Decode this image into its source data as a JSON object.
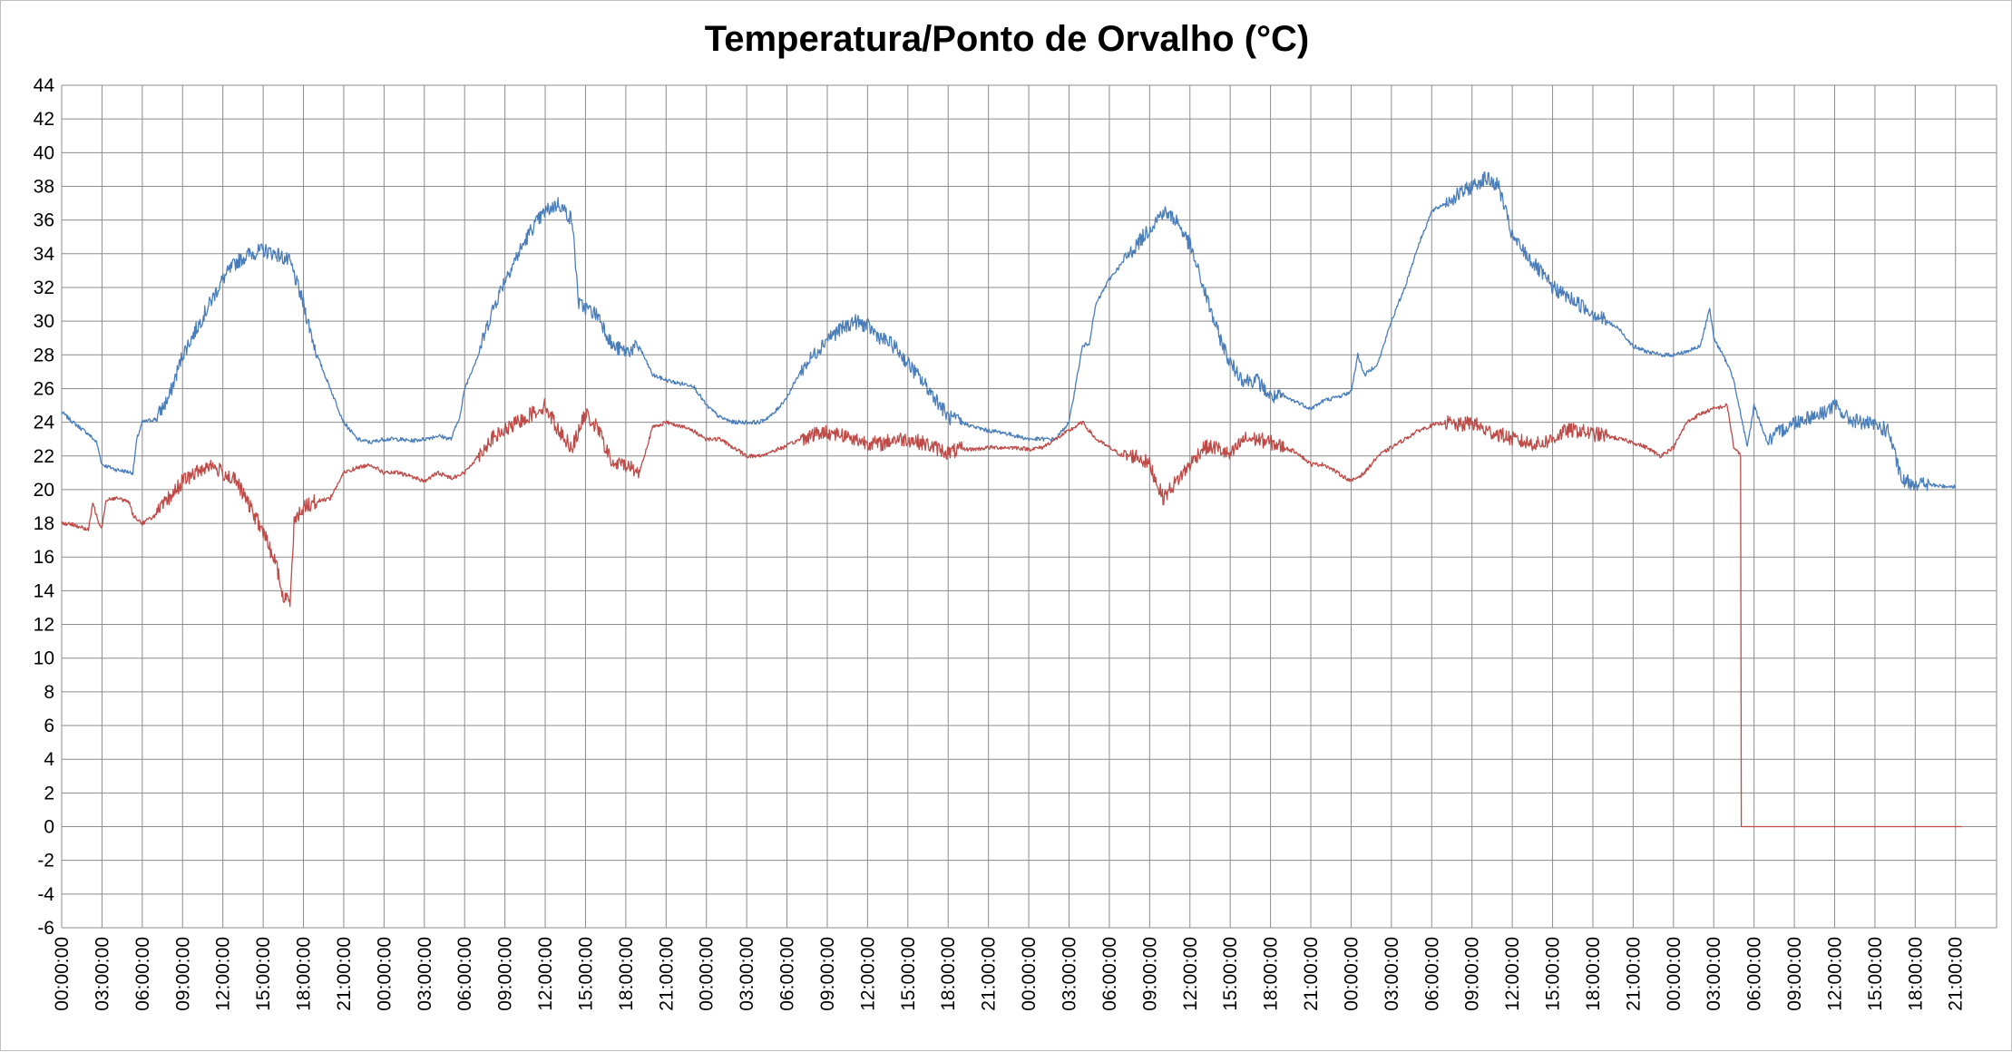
{
  "chart_data": {
    "type": "line",
    "title": "Temperatura/Ponto de Orvalho (°C)",
    "xlabel": "",
    "ylabel": "",
    "ylim": [
      -6,
      44
    ],
    "yticks": [
      -6,
      -4,
      -2,
      0,
      2,
      4,
      6,
      8,
      10,
      12,
      14,
      16,
      18,
      20,
      22,
      24,
      26,
      28,
      30,
      32,
      34,
      36,
      38,
      40,
      42,
      44
    ],
    "x_hours_range": [
      0,
      141.5
    ],
    "x_tick_labels": [
      "00:00:00",
      "03:00:00",
      "06:00:00",
      "09:00:00",
      "12:00:00",
      "15:00:00",
      "18:00:00",
      "21:00:00",
      "00:00:00",
      "03:00:00",
      "06:00:00",
      "09:00:00",
      "12:00:00",
      "15:00:00",
      "18:00:00",
      "21:00:00",
      "00:00:00",
      "03:00:00",
      "06:00:00",
      "09:00:00",
      "12:00:00",
      "15:00:00",
      "18:00:00",
      "21:00:00",
      "00:00:00",
      "03:00:00",
      "06:00:00",
      "09:00:00",
      "12:00:00",
      "15:00:00",
      "18:00:00",
      "21:00:00",
      "00:00:00",
      "03:00:00",
      "06:00:00",
      "09:00:00",
      "12:00:00",
      "15:00:00",
      "18:00:00",
      "21:00:00",
      "00:00:00",
      "03:00:00",
      "06:00:00",
      "09:00:00",
      "12:00:00",
      "15:00:00",
      "18:00:00",
      "21:00:00"
    ],
    "grid": true,
    "legend": "none",
    "series": [
      {
        "color": "#4a7ebb",
        "points": [
          [
            0,
            24.6
          ],
          [
            1,
            23.9
          ],
          [
            2,
            23.3
          ],
          [
            2.6,
            22.8
          ],
          [
            3,
            21.5
          ],
          [
            4,
            21.2
          ],
          [
            5.3,
            21.0
          ],
          [
            5.6,
            23.0
          ],
          [
            6,
            24.0
          ],
          [
            7,
            24.2
          ],
          [
            8,
            25.5
          ],
          [
            9,
            28.0
          ],
          [
            10,
            29.5
          ],
          [
            11,
            31.0
          ],
          [
            12,
            32.5
          ],
          [
            13,
            33.5
          ],
          [
            14,
            34.0
          ],
          [
            15,
            34.2
          ],
          [
            16,
            34.0
          ],
          [
            17,
            33.5
          ],
          [
            18,
            31.0
          ],
          [
            19,
            28.0
          ],
          [
            20,
            26.0
          ],
          [
            21,
            24.0
          ],
          [
            22,
            23.0
          ],
          [
            23,
            22.8
          ],
          [
            24,
            23.0
          ],
          [
            25,
            23.0
          ],
          [
            26,
            22.9
          ],
          [
            27,
            23.0
          ],
          [
            28,
            23.2
          ],
          [
            29,
            23.0
          ],
          [
            29.7,
            24.5
          ],
          [
            30,
            26.0
          ],
          [
            31,
            28.0
          ],
          [
            32,
            30.5
          ],
          [
            33,
            32.5
          ],
          [
            34,
            34.0
          ],
          [
            35,
            35.5
          ],
          [
            36,
            36.5
          ],
          [
            37,
            37.0
          ],
          [
            38,
            36.0
          ],
          [
            38.5,
            31.0
          ],
          [
            39,
            30.8
          ],
          [
            40,
            30.3
          ],
          [
            41,
            28.5
          ],
          [
            42,
            28.2
          ],
          [
            43,
            28.5
          ],
          [
            44,
            26.8
          ],
          [
            45,
            26.5
          ],
          [
            46,
            26.3
          ],
          [
            47,
            26.2
          ],
          [
            48,
            25.0
          ],
          [
            49,
            24.3
          ],
          [
            50,
            24.0
          ],
          [
            51,
            24.0
          ],
          [
            52,
            24.0
          ],
          [
            53,
            24.5
          ],
          [
            54,
            25.5
          ],
          [
            55,
            27.0
          ],
          [
            56,
            28.0
          ],
          [
            57,
            29.0
          ],
          [
            58,
            29.5
          ],
          [
            59,
            30.0
          ],
          [
            60,
            29.7
          ],
          [
            61,
            29.0
          ],
          [
            62,
            28.5
          ],
          [
            63,
            27.5
          ],
          [
            64,
            26.5
          ],
          [
            65,
            25.5
          ],
          [
            66,
            24.3
          ],
          [
            67,
            24.0
          ],
          [
            68,
            23.7
          ],
          [
            69,
            23.5
          ],
          [
            70,
            23.4
          ],
          [
            71,
            23.2
          ],
          [
            72,
            23.0
          ],
          [
            73,
            23.0
          ],
          [
            74,
            23.0
          ],
          [
            75,
            24.0
          ],
          [
            76,
            28.5
          ],
          [
            76.5,
            28.7
          ],
          [
            77,
            31.0
          ],
          [
            78,
            32.5
          ],
          [
            79,
            33.5
          ],
          [
            80,
            34.5
          ],
          [
            81,
            35.5
          ],
          [
            82,
            36.5
          ],
          [
            83,
            36.0
          ],
          [
            84,
            34.5
          ],
          [
            85,
            32.0
          ],
          [
            86,
            29.5
          ],
          [
            87,
            27.5
          ],
          [
            88,
            26.5
          ],
          [
            89,
            26.5
          ],
          [
            90,
            25.5
          ],
          [
            91,
            25.5
          ],
          [
            92,
            25.2
          ],
          [
            93,
            24.8
          ],
          [
            94,
            25.3
          ],
          [
            95,
            25.5
          ],
          [
            96,
            25.8
          ],
          [
            96.5,
            28.0
          ],
          [
            97,
            26.8
          ],
          [
            98,
            27.5
          ],
          [
            99,
            30.0
          ],
          [
            100,
            32.0
          ],
          [
            101,
            34.5
          ],
          [
            102,
            36.5
          ],
          [
            103,
            37.0
          ],
          [
            104,
            37.5
          ],
          [
            105,
            38.0
          ],
          [
            106,
            38.5
          ],
          [
            107,
            38.0
          ],
          [
            108,
            35.0
          ],
          [
            109,
            34.0
          ],
          [
            110,
            33.0
          ],
          [
            111,
            32.0
          ],
          [
            112,
            31.5
          ],
          [
            113,
            31.0
          ],
          [
            114,
            30.5
          ],
          [
            115,
            30.0
          ],
          [
            116,
            29.5
          ],
          [
            117,
            28.5
          ],
          [
            118,
            28.2
          ],
          [
            119,
            28.0
          ],
          [
            120,
            28.0
          ],
          [
            121,
            28.2
          ],
          [
            122,
            28.5
          ],
          [
            122.7,
            30.8
          ],
          [
            123,
            29.0
          ],
          [
            124,
            27.5
          ],
          [
            124.5,
            26.5
          ],
          [
            125,
            24.5
          ],
          [
            125.5,
            22.5
          ],
          [
            126,
            25.0
          ],
          [
            127,
            22.8
          ],
          [
            128,
            23.5
          ],
          [
            129,
            24.0
          ],
          [
            130,
            24.3
          ],
          [
            131,
            24.5
          ],
          [
            132,
            25.0
          ],
          [
            133,
            24.2
          ],
          [
            134,
            24.0
          ],
          [
            135,
            23.8
          ],
          [
            136,
            23.5
          ],
          [
            137,
            20.5
          ],
          [
            138,
            20.4
          ],
          [
            139,
            20.3
          ],
          [
            140,
            20.2
          ],
          [
            141,
            20.2
          ]
        ]
      },
      {
        "color": "#be4b48",
        "points": [
          [
            0,
            18.0
          ],
          [
            1,
            17.9
          ],
          [
            2,
            17.6
          ],
          [
            2.3,
            19.2
          ],
          [
            2.8,
            18.0
          ],
          [
            3,
            17.8
          ],
          [
            3.3,
            19.4
          ],
          [
            4,
            19.5
          ],
          [
            5,
            19.3
          ],
          [
            5.3,
            18.5
          ],
          [
            6,
            18.0
          ],
          [
            7,
            18.5
          ],
          [
            8,
            19.5
          ],
          [
            9,
            20.5
          ],
          [
            10,
            21.0
          ],
          [
            11,
            21.5
          ],
          [
            12,
            21.0
          ],
          [
            13,
            20.5
          ],
          [
            14,
            19.0
          ],
          [
            15,
            17.5
          ],
          [
            16,
            15.5
          ],
          [
            16.5,
            13.5
          ],
          [
            17,
            13.5
          ],
          [
            17.3,
            18.0
          ],
          [
            18,
            19.0
          ],
          [
            19,
            19.3
          ],
          [
            20,
            19.5
          ],
          [
            21,
            21.0
          ],
          [
            22,
            21.3
          ],
          [
            23,
            21.5
          ],
          [
            24,
            21.0
          ],
          [
            25,
            21.0
          ],
          [
            26,
            20.8
          ],
          [
            27,
            20.5
          ],
          [
            28,
            21.0
          ],
          [
            29,
            20.7
          ],
          [
            30,
            21.0
          ],
          [
            31,
            22.0
          ],
          [
            32,
            23.0
          ],
          [
            33,
            23.5
          ],
          [
            34,
            24.0
          ],
          [
            35,
            24.5
          ],
          [
            36,
            25.0
          ],
          [
            37,
            23.5
          ],
          [
            38,
            22.5
          ],
          [
            39,
            24.5
          ],
          [
            40,
            23.5
          ],
          [
            41,
            21.5
          ],
          [
            42,
            21.5
          ],
          [
            43,
            21.0
          ],
          [
            44,
            23.7
          ],
          [
            45,
            24.0
          ],
          [
            46,
            23.8
          ],
          [
            47,
            23.5
          ],
          [
            48,
            23.0
          ],
          [
            49,
            23.0
          ],
          [
            50,
            22.5
          ],
          [
            51,
            22.0
          ],
          [
            52,
            22.0
          ],
          [
            53,
            22.3
          ],
          [
            54,
            22.6
          ],
          [
            55,
            23.0
          ],
          [
            56,
            23.3
          ],
          [
            57,
            23.4
          ],
          [
            58,
            23.3
          ],
          [
            59,
            23.0
          ],
          [
            60,
            22.8
          ],
          [
            61,
            22.7
          ],
          [
            62,
            23.0
          ],
          [
            63,
            23.0
          ],
          [
            64,
            22.8
          ],
          [
            65,
            22.5
          ],
          [
            66,
            22.2
          ],
          [
            67,
            22.4
          ],
          [
            68,
            22.4
          ],
          [
            69,
            22.5
          ],
          [
            70,
            22.5
          ],
          [
            71,
            22.5
          ],
          [
            72,
            22.4
          ],
          [
            73,
            22.5
          ],
          [
            74,
            23.0
          ],
          [
            75,
            23.5
          ],
          [
            76,
            24.0
          ],
          [
            77,
            23.0
          ],
          [
            78,
            22.5
          ],
          [
            79,
            22.0
          ],
          [
            80,
            22.0
          ],
          [
            81,
            21.5
          ],
          [
            82,
            19.5
          ],
          [
            83,
            20.5
          ],
          [
            84,
            21.5
          ],
          [
            85,
            22.5
          ],
          [
            86,
            22.5
          ],
          [
            87,
            22.0
          ],
          [
            88,
            23.0
          ],
          [
            89,
            23.0
          ],
          [
            90,
            22.8
          ],
          [
            91,
            22.5
          ],
          [
            92,
            22.2
          ],
          [
            93,
            21.5
          ],
          [
            94,
            21.5
          ],
          [
            95,
            21.0
          ],
          [
            96,
            20.5
          ],
          [
            97,
            21.0
          ],
          [
            98,
            22.0
          ],
          [
            99,
            22.5
          ],
          [
            100,
            23.0
          ],
          [
            101,
            23.5
          ],
          [
            102,
            23.8
          ],
          [
            103,
            24.0
          ],
          [
            104,
            23.8
          ],
          [
            105,
            24.0
          ],
          [
            106,
            23.5
          ],
          [
            107,
            23.3
          ],
          [
            108,
            23.0
          ],
          [
            109,
            22.8
          ],
          [
            110,
            22.7
          ],
          [
            111,
            23.0
          ],
          [
            112,
            23.5
          ],
          [
            113,
            23.5
          ],
          [
            114,
            23.3
          ],
          [
            115,
            23.2
          ],
          [
            116,
            23.0
          ],
          [
            117,
            22.8
          ],
          [
            118,
            22.5
          ],
          [
            119,
            22.0
          ],
          [
            120,
            22.5
          ],
          [
            121,
            24.0
          ],
          [
            122,
            24.5
          ],
          [
            123,
            24.8
          ],
          [
            124,
            25.0
          ],
          [
            124.5,
            22.5
          ],
          [
            125,
            22.0
          ],
          [
            125.05,
            0
          ],
          [
            128,
            0
          ],
          [
            141.5,
            0
          ]
        ]
      }
    ]
  }
}
